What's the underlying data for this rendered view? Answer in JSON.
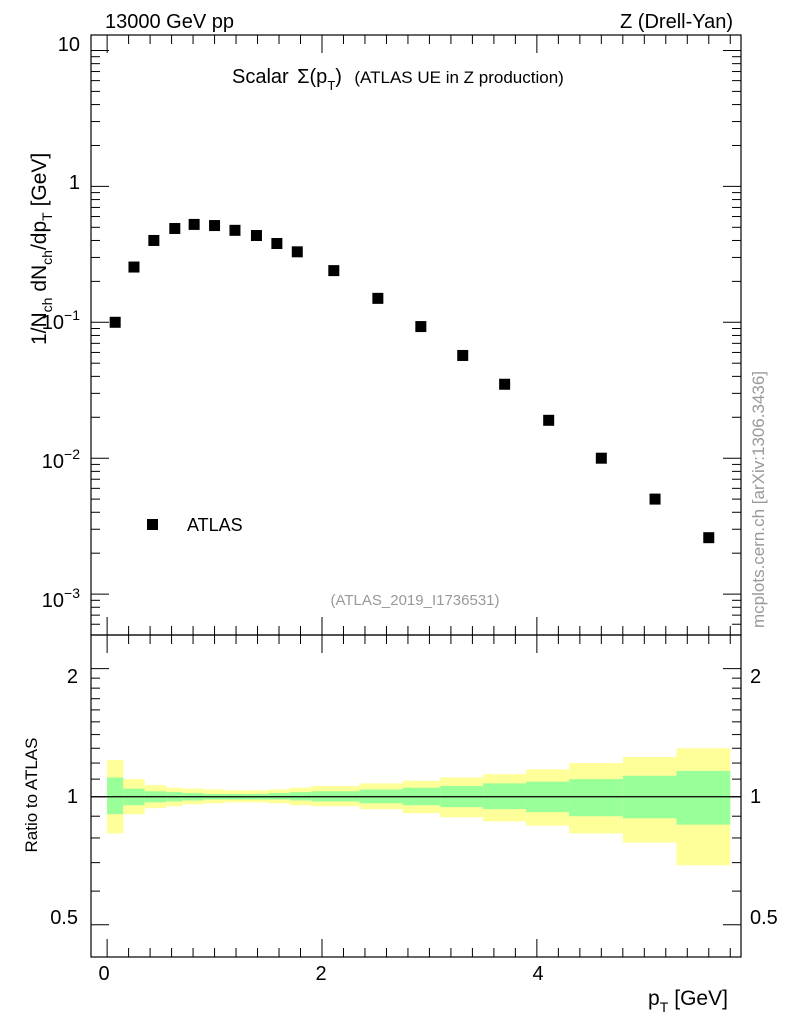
{
  "header": {
    "left": "13000 GeV pp",
    "right": "Z (Drell-Yan)"
  },
  "plot_title": {
    "prefix": "Scalar",
    "sigma": "Σ(p",
    "sub": "T",
    "close": ")",
    "rest": "(ATLAS UE in Z production)"
  },
  "y_axis": {
    "p1": "1/N",
    "s1": "ch",
    "p2": " dN",
    "s2": "ch",
    "p3": "/dp",
    "s3": "T",
    "p4": " [GeV]"
  },
  "ratio_ylabel": "Ratio to ATLAS",
  "x_axis": {
    "main": "p",
    "sub": "T",
    "unit": "[GeV]"
  },
  "legend": {
    "label": "ATLAS"
  },
  "analysis_id": "(ATLAS_2019_I1736531)",
  "side_label": "mcplots.cern.ch [arXiv:1306.3436]",
  "main_ticks": [
    {
      "base": "10",
      "exp": ""
    },
    {
      "base": "1",
      "exp": ""
    },
    {
      "base": "10",
      "exp": "−1"
    },
    {
      "base": "10",
      "exp": "−2"
    },
    {
      "base": "10",
      "exp": "−3"
    }
  ],
  "ratio_ticks": [
    "2",
    "1",
    "0.5"
  ],
  "x_ticks": [
    "0",
    "2",
    "4"
  ],
  "colors": {
    "inner_band": "#99ff99",
    "outer_band": "#ffff99",
    "marker": "#000000"
  },
  "chart_data": [
    {
      "type": "scatter",
      "log_y": true,
      "xlim": [
        -0.15,
        5.9
      ],
      "ylim": [
        0.0005,
        13
      ],
      "series": [
        {
          "name": "ATLAS",
          "x": [
            0.075,
            0.25,
            0.435,
            0.63,
            0.81,
            1.0,
            1.19,
            1.39,
            1.58,
            1.77,
            2.11,
            2.52,
            2.92,
            3.31,
            3.7,
            4.11,
            4.6,
            5.1,
            5.6
          ],
          "values": [
            0.1,
            0.255,
            0.4,
            0.49,
            0.525,
            0.515,
            0.475,
            0.435,
            0.38,
            0.33,
            0.24,
            0.15,
            0.093,
            0.057,
            0.035,
            0.019,
            0.01,
            0.005,
            0.0026
          ]
        }
      ]
    },
    {
      "type": "area",
      "log_y": true,
      "xlim": [
        -0.15,
        5.9
      ],
      "ylim": [
        0.42,
        2.4
      ],
      "reference_line": 1,
      "bins": [
        0,
        0.15,
        0.35,
        0.55,
        0.7,
        0.9,
        1.1,
        1.3,
        1.5,
        1.7,
        1.9,
        2.35,
        2.75,
        3.1,
        3.5,
        3.9,
        4.3,
        4.8,
        5.3,
        5.8
      ],
      "outer_band": {
        "low": [
          0.82,
          0.91,
          0.94,
          0.95,
          0.96,
          0.965,
          0.97,
          0.97,
          0.965,
          0.955,
          0.95,
          0.935,
          0.915,
          0.895,
          0.875,
          0.855,
          0.82,
          0.78,
          0.69
        ],
        "high": [
          1.22,
          1.1,
          1.065,
          1.05,
          1.045,
          1.04,
          1.035,
          1.035,
          1.04,
          1.05,
          1.06,
          1.075,
          1.09,
          1.11,
          1.13,
          1.16,
          1.2,
          1.24,
          1.3
        ]
      },
      "inner_band": {
        "low": [
          0.91,
          0.955,
          0.97,
          0.975,
          0.98,
          0.985,
          0.985,
          0.985,
          0.985,
          0.98,
          0.975,
          0.965,
          0.955,
          0.945,
          0.935,
          0.92,
          0.9,
          0.89,
          0.86
        ],
        "high": [
          1.11,
          1.045,
          1.03,
          1.025,
          1.02,
          1.015,
          1.015,
          1.015,
          1.02,
          1.025,
          1.03,
          1.04,
          1.05,
          1.06,
          1.075,
          1.085,
          1.1,
          1.12,
          1.15
        ]
      }
    }
  ]
}
